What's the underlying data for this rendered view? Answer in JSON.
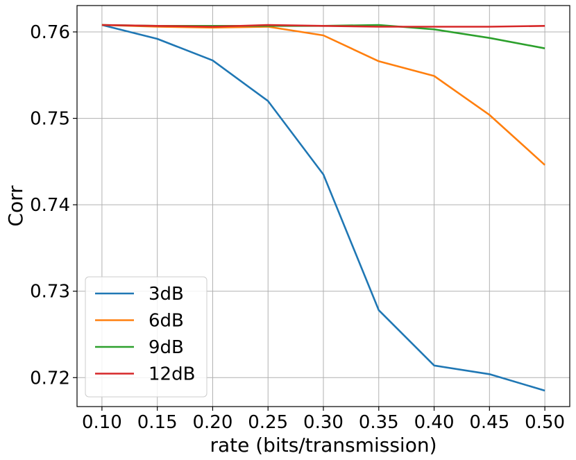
{
  "chart_data": {
    "type": "line",
    "xlabel": "rate (bits/transmission)",
    "ylabel": "Corr",
    "x": [
      0.1,
      0.15,
      0.2,
      0.25,
      0.3,
      0.35,
      0.4,
      0.45,
      0.5
    ],
    "x_tick_labels": [
      "0.10",
      "0.15",
      "0.20",
      "0.25",
      "0.30",
      "0.35",
      "0.40",
      "0.45",
      "0.50"
    ],
    "y_ticks": [
      0.72,
      0.73,
      0.74,
      0.75,
      0.76
    ],
    "y_tick_labels": [
      "0.72",
      "0.73",
      "0.74",
      "0.75",
      "0.76"
    ],
    "xlim": [
      0.0775,
      0.5225
    ],
    "ylim": [
      0.71665,
      0.76305
    ],
    "grid": true,
    "legend_position": "lower-left",
    "series": [
      {
        "name": "3dB",
        "color": "#1f77b4",
        "values": [
          0.7608,
          0.7592,
          0.7567,
          0.752,
          0.7435,
          0.7278,
          0.7214,
          0.7204,
          0.7185
        ]
      },
      {
        "name": "6dB",
        "color": "#ff7f0e",
        "values": [
          0.7608,
          0.7606,
          0.7605,
          0.7606,
          0.7596,
          0.7566,
          0.7549,
          0.7504,
          0.7446
        ]
      },
      {
        "name": "9dB",
        "color": "#2ca02c",
        "values": [
          0.7608,
          0.7607,
          0.7607,
          0.7607,
          0.7607,
          0.7608,
          0.7603,
          0.7593,
          0.7581
        ]
      },
      {
        "name": "12dB",
        "color": "#d62728",
        "values": [
          0.7608,
          0.7607,
          0.7606,
          0.7608,
          0.7607,
          0.7606,
          0.7606,
          0.7606,
          0.7607
        ]
      }
    ]
  }
}
